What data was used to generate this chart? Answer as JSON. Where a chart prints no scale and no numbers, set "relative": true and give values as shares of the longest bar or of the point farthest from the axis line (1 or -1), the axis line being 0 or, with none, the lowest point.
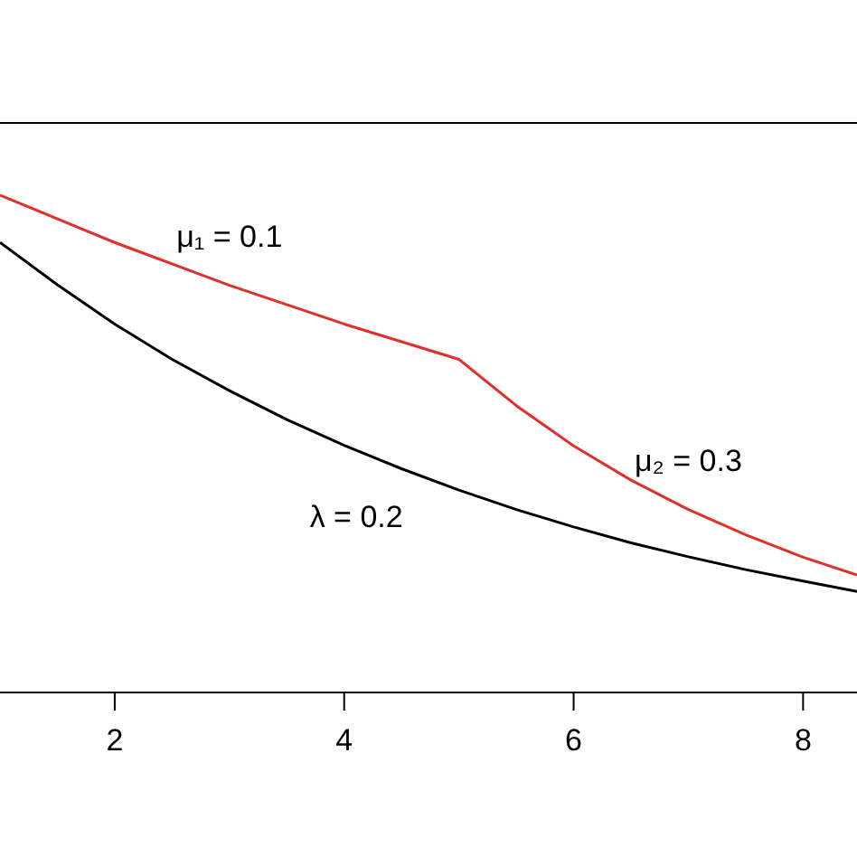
{
  "chart_data": {
    "type": "line",
    "relative": true,
    "xlim": [
      1,
      8.47
    ],
    "xticks": [
      2,
      4,
      6,
      8
    ],
    "tick_labels": "x",
    "line_style": "solid",
    "series": [
      {
        "color": "#e0302c",
        "x": [
          1,
          2,
          3,
          4,
          5,
          5.5,
          6,
          6.5,
          7,
          7.5,
          8,
          8.47
        ],
        "values": [
          1,
          0.905,
          0.819,
          0.741,
          0.67,
          0.577,
          0.496,
          0.427,
          0.368,
          0.317,
          0.272,
          0.236
        ]
      },
      {
        "color": "#000000",
        "x": [
          1,
          1.5,
          2,
          2.5,
          3,
          3.5,
          4,
          4.5,
          5,
          5.5,
          6,
          6.5,
          7,
          7.5,
          8,
          8.47
        ],
        "values": [
          0.905,
          0.82,
          0.741,
          0.67,
          0.607,
          0.549,
          0.497,
          0.45,
          0.407,
          0.368,
          0.333,
          0.301,
          0.273,
          0.247,
          0.224,
          0.203
        ]
      }
    ],
    "annotations": [
      {
        "text": "μ₁ = 0.1",
        "x": 3,
        "y": 0.819
      },
      {
        "text": "λ = 0.2",
        "x": 4.5,
        "y": 0.45
      },
      {
        "text": "μ₂ = 0.3",
        "x": 7,
        "y": 0.368
      }
    ]
  }
}
